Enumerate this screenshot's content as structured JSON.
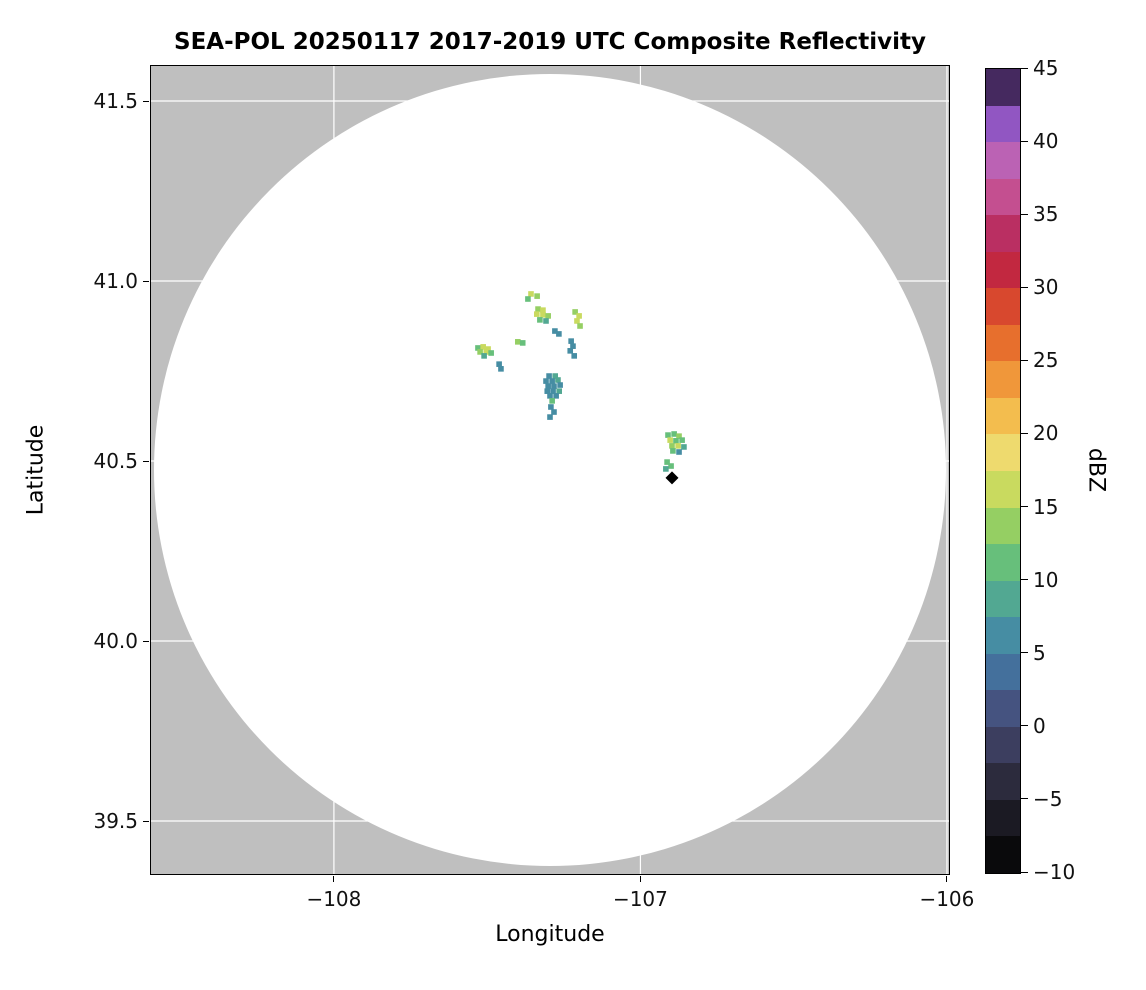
{
  "figure": {
    "title": "SEA-POL 20250117 2017-2019 UTC Composite Reflectivity",
    "xlabel": "Longitude",
    "ylabel": "Latitude",
    "colorbar_label": "dBZ"
  },
  "chart_data": {
    "type": "heatmap",
    "title": "SEA-POL 20250117 2017-2019 UTC Composite Reflectivity",
    "xlabel": "Longitude",
    "ylabel": "Latitude",
    "xlim": [
      -108.6,
      -105.99
    ],
    "ylim": [
      39.35,
      41.6
    ],
    "background_color": "#bfbfbf",
    "grid_color": "#ffffff",
    "grid_on": true,
    "x_ticks": [
      {
        "value": -108,
        "label": "−108"
      },
      {
        "value": -107,
        "label": "−107"
      },
      {
        "value": -106,
        "label": "−106"
      }
    ],
    "y_ticks": [
      {
        "value": 41.5,
        "label": "41.5"
      },
      {
        "value": 41.0,
        "label": "41.0"
      },
      {
        "value": 40.5,
        "label": "40.5"
      },
      {
        "value": 40.0,
        "label": "40.0"
      },
      {
        "value": 39.5,
        "label": "39.5"
      }
    ],
    "coverage_circle": {
      "center_lon": -107.295,
      "center_lat": 40.475,
      "radius_lat_deg": 1.1,
      "fill": "#ffffff"
    },
    "radar_marker": {
      "lon": -106.897,
      "lat": 40.453,
      "symbol": "diamond",
      "color": "#000000"
    },
    "echoes": [
      [
        -107.357,
        40.964,
        15
      ],
      [
        -107.337,
        40.958,
        13
      ],
      [
        -107.367,
        40.95,
        10
      ],
      [
        -107.334,
        40.922,
        13
      ],
      [
        -107.318,
        40.919,
        15
      ],
      [
        -107.338,
        40.908,
        15
      ],
      [
        -107.318,
        40.906,
        17
      ],
      [
        -107.301,
        40.903,
        13
      ],
      [
        -107.328,
        40.892,
        10
      ],
      [
        -107.308,
        40.889,
        8
      ],
      [
        -107.213,
        40.914,
        13
      ],
      [
        -107.2,
        40.903,
        15
      ],
      [
        -107.207,
        40.889,
        17
      ],
      [
        -107.197,
        40.875,
        13
      ],
      [
        -107.279,
        40.861,
        7
      ],
      [
        -107.266,
        40.853,
        5
      ],
      [
        -107.4,
        40.831,
        13
      ],
      [
        -107.384,
        40.828,
        12
      ],
      [
        -107.226,
        40.833,
        7
      ],
      [
        -107.22,
        40.819,
        5
      ],
      [
        -107.229,
        40.806,
        7
      ],
      [
        -107.216,
        40.792,
        5
      ],
      [
        -107.53,
        40.814,
        12
      ],
      [
        -107.513,
        40.817,
        15
      ],
      [
        -107.497,
        40.811,
        17
      ],
      [
        -107.523,
        40.803,
        13
      ],
      [
        -107.503,
        40.803,
        15
      ],
      [
        -107.487,
        40.8,
        10
      ],
      [
        -107.51,
        40.792,
        8
      ],
      [
        -107.461,
        40.769,
        7
      ],
      [
        -107.455,
        40.756,
        5
      ],
      [
        -107.298,
        40.736,
        7
      ],
      [
        -107.278,
        40.736,
        8
      ],
      [
        -107.308,
        40.722,
        5
      ],
      [
        -107.288,
        40.722,
        7
      ],
      [
        -107.269,
        40.725,
        8
      ],
      [
        -107.301,
        40.708,
        5
      ],
      [
        -107.282,
        40.708,
        7
      ],
      [
        -107.262,
        40.711,
        5
      ],
      [
        -107.304,
        40.694,
        7
      ],
      [
        -107.285,
        40.694,
        5
      ],
      [
        -107.265,
        40.694,
        8
      ],
      [
        -107.295,
        40.681,
        5
      ],
      [
        -107.275,
        40.681,
        7
      ],
      [
        -107.288,
        40.667,
        10
      ],
      [
        -107.292,
        40.65,
        7
      ],
      [
        -107.282,
        40.636,
        5
      ],
      [
        -107.295,
        40.622,
        7
      ],
      [
        -106.91,
        40.572,
        10
      ],
      [
        -106.89,
        40.575,
        12
      ],
      [
        -106.874,
        40.569,
        13
      ],
      [
        -106.903,
        40.558,
        15
      ],
      [
        -106.884,
        40.556,
        12
      ],
      [
        -106.864,
        40.558,
        10
      ],
      [
        -106.897,
        40.542,
        13
      ],
      [
        -106.877,
        40.542,
        15
      ],
      [
        -106.858,
        40.539,
        8
      ],
      [
        -106.894,
        40.528,
        10
      ],
      [
        -106.874,
        40.525,
        7
      ],
      [
        -106.913,
        40.497,
        12
      ],
      [
        -106.9,
        40.486,
        10
      ],
      [
        -106.917,
        40.478,
        8
      ]
    ],
    "colorbar": {
      "label": "dBZ",
      "min": -10,
      "max": 45,
      "step": 2.5,
      "ticks": [
        {
          "value": 45,
          "label": "45"
        },
        {
          "value": 40,
          "label": "40"
        },
        {
          "value": 35,
          "label": "35"
        },
        {
          "value": 30,
          "label": "30"
        },
        {
          "value": 25,
          "label": "25"
        },
        {
          "value": 20,
          "label": "20"
        },
        {
          "value": 15,
          "label": "15"
        },
        {
          "value": 10,
          "label": "10"
        },
        {
          "value": 5,
          "label": "5"
        },
        {
          "value": 0,
          "label": "0"
        },
        {
          "value": -5,
          "label": "−5"
        },
        {
          "value": -10,
          "label": "−10"
        }
      ],
      "colors": [
        "#0a0a0c",
        "#1b1a23",
        "#2c2b3d",
        "#3c3e5f",
        "#455380",
        "#44709c",
        "#468da3",
        "#52a892",
        "#67bf7b",
        "#95cf63",
        "#c9da5f",
        "#eeda6e",
        "#f3bd4e",
        "#f0973a",
        "#e76f2d",
        "#d8482e",
        "#c22840",
        "#ba2f62",
        "#c44f90",
        "#bb62b4",
        "#9156c2",
        "#45295f"
      ]
    }
  }
}
